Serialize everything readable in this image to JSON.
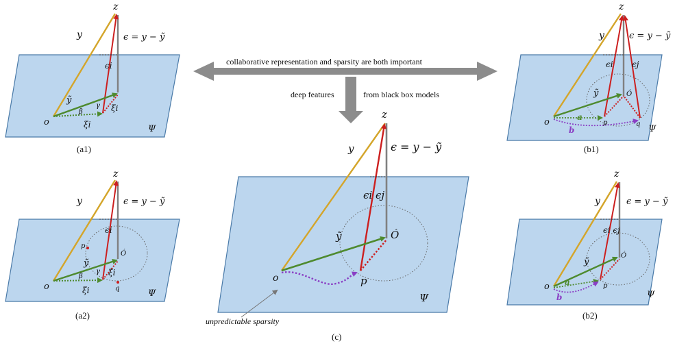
{
  "arrows": {
    "horizontal": "collaborative representation and sparsity are both important",
    "vertical_left": "deep features",
    "vertical_right": "from black box models"
  },
  "symbols": {
    "z": "z",
    "y": "y",
    "eps_eq": "ϵ = y − ỹ",
    "eps_i": "ϵi",
    "eps_j": "ϵj",
    "eps_ij": "ϵi ϵj",
    "ytilde": "ỹ",
    "o": "o",
    "psi": "Ψ",
    "beta": "β",
    "gamma": "γ",
    "xi": "ξi",
    "p": "p",
    "q": "q",
    "a": "a",
    "b": "b",
    "ohat": "Ó"
  },
  "captions": {
    "a1": "(a1)",
    "a2": "(a2)",
    "c": "(c)",
    "b1": "(b1)",
    "b2": "(b2)"
  },
  "annotation": "unpredictable sparsity",
  "colors": {
    "plane": "#bcd6ee",
    "y_vector": "#d4a52a",
    "error": "#cc1f1f",
    "projection": "#4e8a2e",
    "normal": "#808080",
    "sparsity": "#8a3fc4",
    "arrow": "#8c8c8c"
  }
}
